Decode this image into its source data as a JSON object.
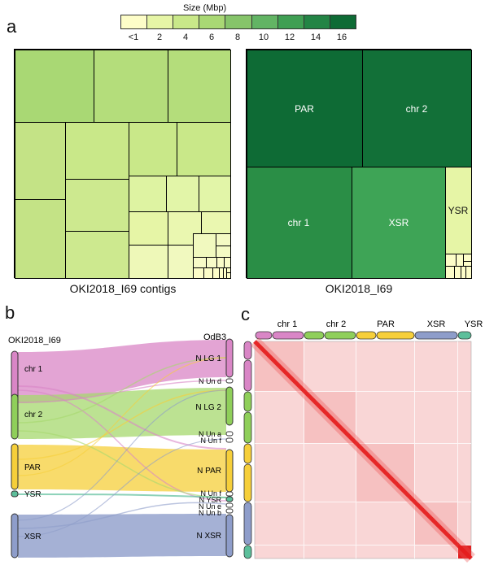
{
  "panels": {
    "a": "a",
    "b": "b",
    "c": "c"
  },
  "legend": {
    "title": "Size (Mbp)",
    "ticks": [
      "<1",
      "2",
      "4",
      "6",
      "8",
      "10",
      "12",
      "14",
      "16"
    ],
    "colors": [
      "#fdfdc8",
      "#e6f5a6",
      "#c9e889",
      "#a9d874",
      "#86c46a",
      "#62b464",
      "#3f9f53",
      "#238445",
      "#0e6b35"
    ]
  },
  "treemap_left": {
    "caption": "OKI2018_I69 contigs"
  },
  "treemap_right": {
    "caption": "OKI2018_I69",
    "labels": {
      "par": "PAR",
      "chr2": "chr 2",
      "chr1": "chr 1",
      "xsr": "XSR",
      "ysr": "YSR"
    }
  },
  "sankey": {
    "left_title": "OKI2018_I69",
    "right_title": "OdB3",
    "left_labels": [
      "chr 1",
      "chr 2",
      "PAR",
      "YSR",
      "XSR"
    ],
    "right_labels": {
      "lg1": "N LG 1",
      "und": "N Un d",
      "lg2": "N LG 2",
      "una": "N Un a",
      "unf1": "N Un f",
      "par": "N PAR",
      "unf2": "N Un f",
      "ysr": "N YSR",
      "une": "N Un e",
      "unb": "N Un b",
      "xsr": "N XSR"
    },
    "colors": {
      "chr1": "#d986c6",
      "chr2": "#8fcf5a",
      "par": "#f6cf3a",
      "ysr": "#5cbf9b",
      "xsr": "#8e9dca"
    }
  },
  "hic": {
    "labels": [
      "chr 1",
      "chr 2",
      "PAR",
      "XSR",
      "YSR"
    ]
  }
}
